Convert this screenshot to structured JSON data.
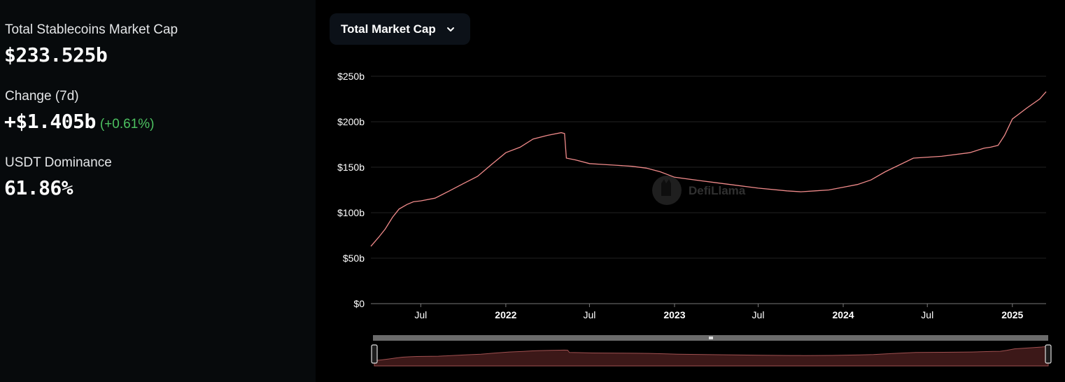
{
  "stats": {
    "mcap_label": "Total Stablecoins Market Cap",
    "mcap_value": "$233.525b",
    "change_label": "Change (7d)",
    "change_value": "+$1.405b",
    "change_pct": "(+0.61%)",
    "dominance_label": "USDT Dominance",
    "dominance_value": "61.86%"
  },
  "dropdown": {
    "label": "Total Market Cap",
    "icon": "chevron-down-icon"
  },
  "watermark": {
    "text": "DefiLlama"
  },
  "colors": {
    "line": "#f08a8a",
    "up": "#4cc060",
    "brush_fill": "#4a1c1c"
  },
  "chart_data": {
    "type": "line",
    "title": "",
    "xlabel": "",
    "ylabel": "",
    "ylim": [
      0,
      250
    ],
    "yticks": [
      "$0",
      "$50b",
      "$100b",
      "$150b",
      "$200b",
      "$250b"
    ],
    "xticks": [
      "Jul",
      "2022",
      "Jul",
      "2023",
      "Jul",
      "2024",
      "Jul",
      "2025"
    ],
    "xlim": [
      "2021-03-15",
      "2025-03-15"
    ],
    "grid": true,
    "legend": "none",
    "series": [
      {
        "unit": "billion USD",
        "x": [
          "2021-03-15",
          "2021-04-01",
          "2021-04-15",
          "2021-05-01",
          "2021-05-15",
          "2021-06-01",
          "2021-06-15",
          "2021-07-01",
          "2021-08-01",
          "2021-09-01",
          "2021-10-01",
          "2021-11-01",
          "2021-12-01",
          "2022-01-01",
          "2022-02-01",
          "2022-03-01",
          "2022-04-01",
          "2022-05-01",
          "2022-05-08",
          "2022-05-12",
          "2022-06-01",
          "2022-07-01",
          "2022-08-01",
          "2022-09-01",
          "2022-10-01",
          "2022-11-01",
          "2022-12-01",
          "2023-01-01",
          "2023-03-01",
          "2023-05-01",
          "2023-07-01",
          "2023-09-01",
          "2023-10-01",
          "2023-11-01",
          "2023-12-01",
          "2024-01-01",
          "2024-02-01",
          "2024-03-01",
          "2024-04-01",
          "2024-06-01",
          "2024-08-01",
          "2024-10-01",
          "2024-11-01",
          "2024-11-15",
          "2024-12-01",
          "2024-12-15",
          "2025-01-01",
          "2025-02-01",
          "2025-03-01",
          "2025-03-15"
        ],
        "y": [
          63,
          73,
          82,
          95,
          104,
          109,
          112,
          113,
          116,
          124,
          132,
          140,
          153,
          166,
          172,
          181,
          185,
          188,
          187,
          160,
          158,
          154,
          153,
          152,
          151,
          149,
          145,
          139,
          135,
          131,
          127,
          124,
          123,
          124,
          125,
          128,
          131,
          136,
          145,
          160,
          162,
          166,
          171,
          172,
          174,
          185,
          203,
          215,
          225,
          233
        ]
      }
    ]
  }
}
